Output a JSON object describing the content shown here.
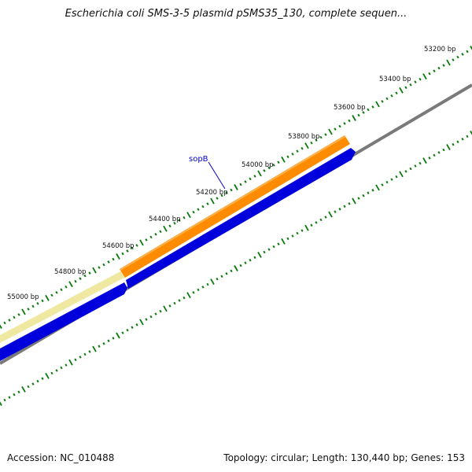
{
  "title": "Escherichia coli SMS-3-5 plasmid pSMS35_130, complete sequen...",
  "footer": {
    "accession": "Accession: NC_010488",
    "summary": "Topology: circular; Length: 130,440 bp; Genes: 153"
  },
  "ticks": [
    {
      "label": "53200 bp"
    },
    {
      "label": "53400 bp"
    },
    {
      "label": "53600 bp"
    },
    {
      "label": "53800 bp"
    },
    {
      "label": "54000 bp"
    },
    {
      "label": "54200 bp"
    },
    {
      "label": "54400 bp"
    },
    {
      "label": "54600 bp"
    },
    {
      "label": "54800 bp"
    },
    {
      "label": "55000 bp"
    }
  ],
  "genes": [
    {
      "name": "sopB"
    }
  ],
  "colors": {
    "cds_blue": "#0000dd",
    "gene_orange": "#ff8c00",
    "gene_pale": "#eee8a0",
    "backbone": "#808080",
    "ticks": "#0a7a0a",
    "label_blue": "#0000cc"
  }
}
